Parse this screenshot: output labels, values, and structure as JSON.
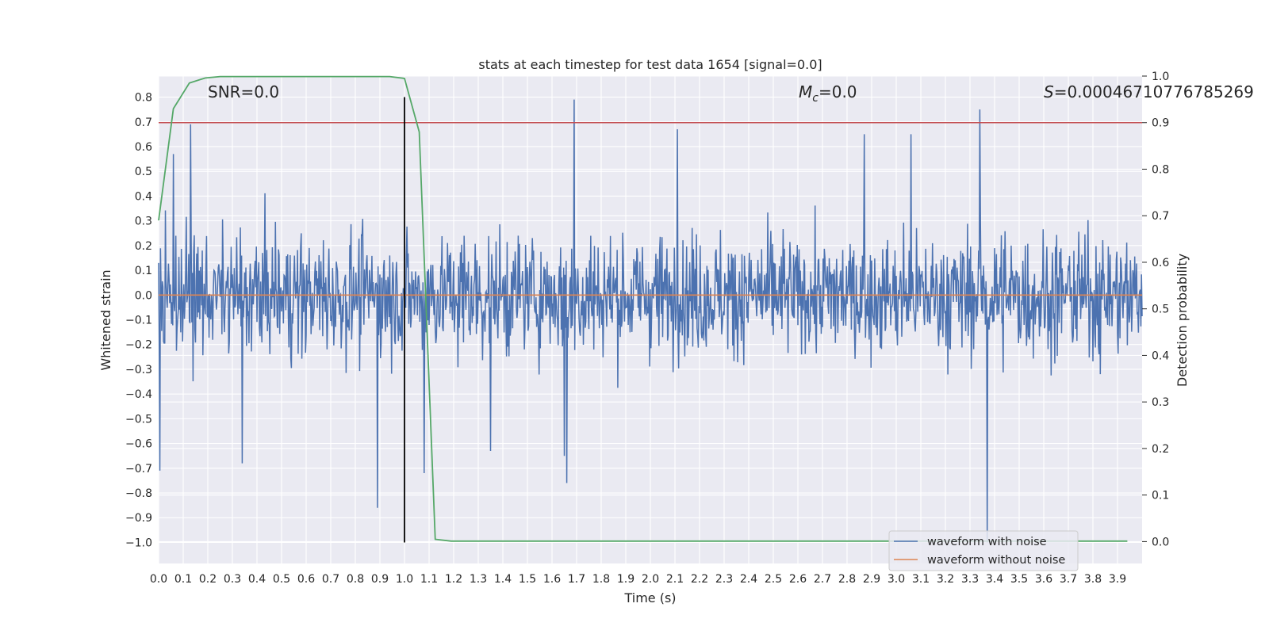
{
  "chart_data": {
    "type": "line",
    "title": "stats at each timestep for test data 1654 [signal=0.0]",
    "xlabel": "Time (s)",
    "ylabel_left": "Whitened strain",
    "ylabel_right": "Detection probability",
    "xlim": [
      0.0,
      4.0
    ],
    "ylim_left": [
      -1.085,
      0.885
    ],
    "ylim_right": [
      -0.047,
      1.0
    ],
    "x_ticks": [
      "0.0",
      "0.1",
      "0.2",
      "0.3",
      "0.4",
      "0.5",
      "0.6",
      "0.7",
      "0.8",
      "0.9",
      "1.0",
      "1.1",
      "1.2",
      "1.3",
      "1.4",
      "1.5",
      "1.6",
      "1.7",
      "1.8",
      "1.9",
      "2.0",
      "2.1",
      "2.2",
      "2.3",
      "2.4",
      "2.5",
      "2.6",
      "2.7",
      "2.8",
      "2.9",
      "3.0",
      "3.1",
      "3.2",
      "3.3",
      "3.4",
      "3.5",
      "3.6",
      "3.7",
      "3.8",
      "3.9"
    ],
    "y_ticks_left": [
      "0.8",
      "0.7",
      "0.6",
      "0.5",
      "0.4",
      "0.3",
      "0.2",
      "0.1",
      "0.0",
      "−0.1",
      "−0.2",
      "−0.3",
      "−0.4",
      "−0.5",
      "−0.6",
      "−0.7",
      "−0.8",
      "−0.9",
      "−1.0"
    ],
    "y_ticks_right": [
      "1.0",
      "0.9",
      "0.8",
      "0.7",
      "0.6",
      "0.5",
      "0.4",
      "0.3",
      "0.2",
      "0.1",
      "0.0"
    ],
    "annotations": {
      "snr": "SNR=0.0",
      "mc_symbol": "M",
      "mc_sub": "c",
      "mc_value": "=0.0",
      "s_symbol": "S",
      "s_value": "=0.0004671077678526​9"
    },
    "threshold": {
      "axis": "right",
      "value": 0.9,
      "color": "#c44e52"
    },
    "event_marker": {
      "x": 1.0,
      "y_range_left": [
        -1.0,
        0.8
      ],
      "color": "#000000"
    },
    "grid": true,
    "grid_color": "#ffffff",
    "background": "#eaeaf2",
    "legend": {
      "placement": "lower-right",
      "entries": [
        {
          "label": "waveform with noise",
          "color": "#4c72b0"
        },
        {
          "label": "waveform without noise",
          "color": "#dd8452"
        }
      ]
    },
    "series": [
      {
        "name": "waveform with noise",
        "axis": "left",
        "color": "#4c72b0",
        "style": "dense-noise",
        "spikes": [
          {
            "x": 0.005,
            "y": -0.71
          },
          {
            "x": 0.06,
            "y": 0.57
          },
          {
            "x": 0.13,
            "y": 0.69
          },
          {
            "x": 0.34,
            "y": -0.68
          },
          {
            "x": 0.89,
            "y": -0.86
          },
          {
            "x": 1.08,
            "y": -0.72
          },
          {
            "x": 1.35,
            "y": -0.63
          },
          {
            "x": 1.65,
            "y": -0.65
          },
          {
            "x": 1.66,
            "y": -0.76
          },
          {
            "x": 1.69,
            "y": 0.79
          },
          {
            "x": 2.11,
            "y": 0.67
          },
          {
            "x": 2.87,
            "y": 0.65
          },
          {
            "x": 3.06,
            "y": 0.65
          },
          {
            "x": 3.34,
            "y": 0.75
          },
          {
            "x": 3.37,
            "y": -1.0
          }
        ]
      },
      {
        "name": "waveform without noise",
        "axis": "left",
        "color": "#dd8452",
        "x": [
          0.0,
          4.0
        ],
        "y": [
          0.0,
          0.0
        ]
      },
      {
        "axis": "right",
        "color": "#55a868",
        "x": [
          0.0,
          0.06,
          0.125,
          0.19,
          0.25,
          0.5,
          0.75,
          0.94,
          1.0,
          1.06,
          1.125,
          1.19,
          1.5,
          2.0,
          2.5,
          3.0,
          3.5,
          3.94
        ],
        "y": [
          0.69,
          0.93,
          0.985,
          0.996,
          0.999,
          0.999,
          0.999,
          0.999,
          0.995,
          0.88,
          0.005,
          0.001,
          0.001,
          0.001,
          0.001,
          0.001,
          0.001,
          0.001
        ]
      }
    ]
  }
}
